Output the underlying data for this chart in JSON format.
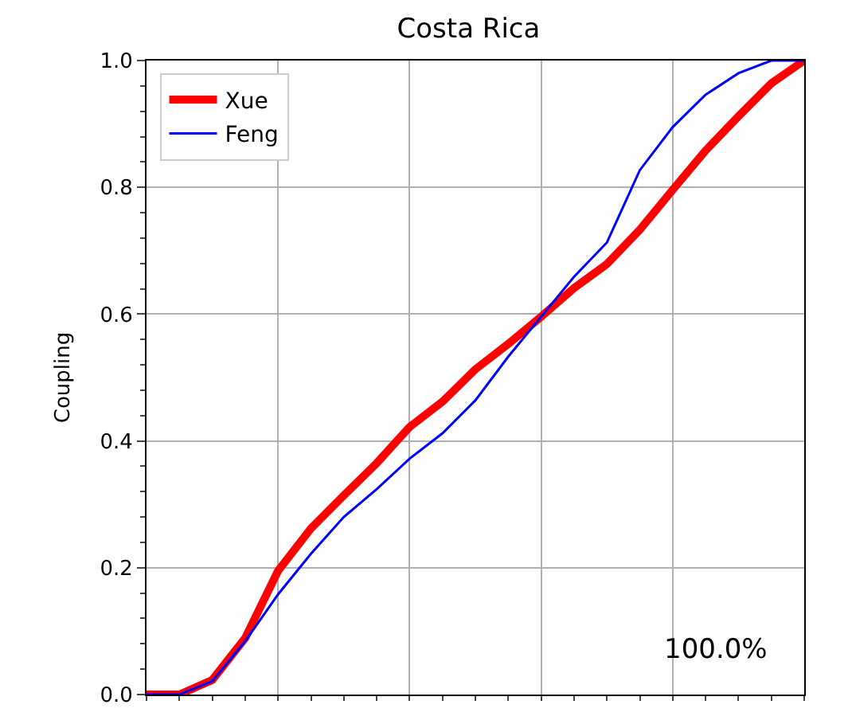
{
  "chart_data": {
    "type": "line",
    "title": "Costa Rica",
    "ylabel": "Coupling",
    "categories": [
      null,
      null,
      null,
      null,
      null,
      null,
      null,
      null,
      null,
      null,
      null,
      null,
      null,
      null,
      null,
      null,
      null,
      null,
      null,
      null,
      null
    ],
    "ylim": [
      0,
      1
    ],
    "yticks": [
      {
        "value": 0,
        "label": "0.0"
      },
      {
        "value": 0.2,
        "label": "0.2"
      },
      {
        "value": 0.4,
        "label": "0.4"
      },
      {
        "value": 0.6,
        "label": "0.6"
      },
      {
        "value": 0.8,
        "label": "0.8"
      },
      {
        "value": 1,
        "label": "1.0"
      }
    ],
    "tick_labels": "y",
    "grid": true,
    "legend": "top left",
    "line_style": "solid",
    "annotations": [
      "100.0%"
    ],
    "series": [
      {
        "name": "Xue",
        "color": "#ff0000",
        "values": [
          0,
          0,
          0.023,
          0.089,
          0.195,
          0.262,
          0.314,
          0.365,
          0.422,
          0.462,
          0.513,
          0.553,
          0.596,
          0.641,
          0.679,
          0.733,
          0.796,
          0.858,
          0.912,
          0.964,
          1
        ]
      },
      {
        "name": "Feng",
        "color": "#0000ff",
        "values": [
          0,
          0,
          0.021,
          0.084,
          0.158,
          0.222,
          0.28,
          0.324,
          0.372,
          0.412,
          0.464,
          0.533,
          0.596,
          0.659,
          0.713,
          0.827,
          0.895,
          0.946,
          0.98,
          1,
          1
        ]
      }
    ]
  }
}
